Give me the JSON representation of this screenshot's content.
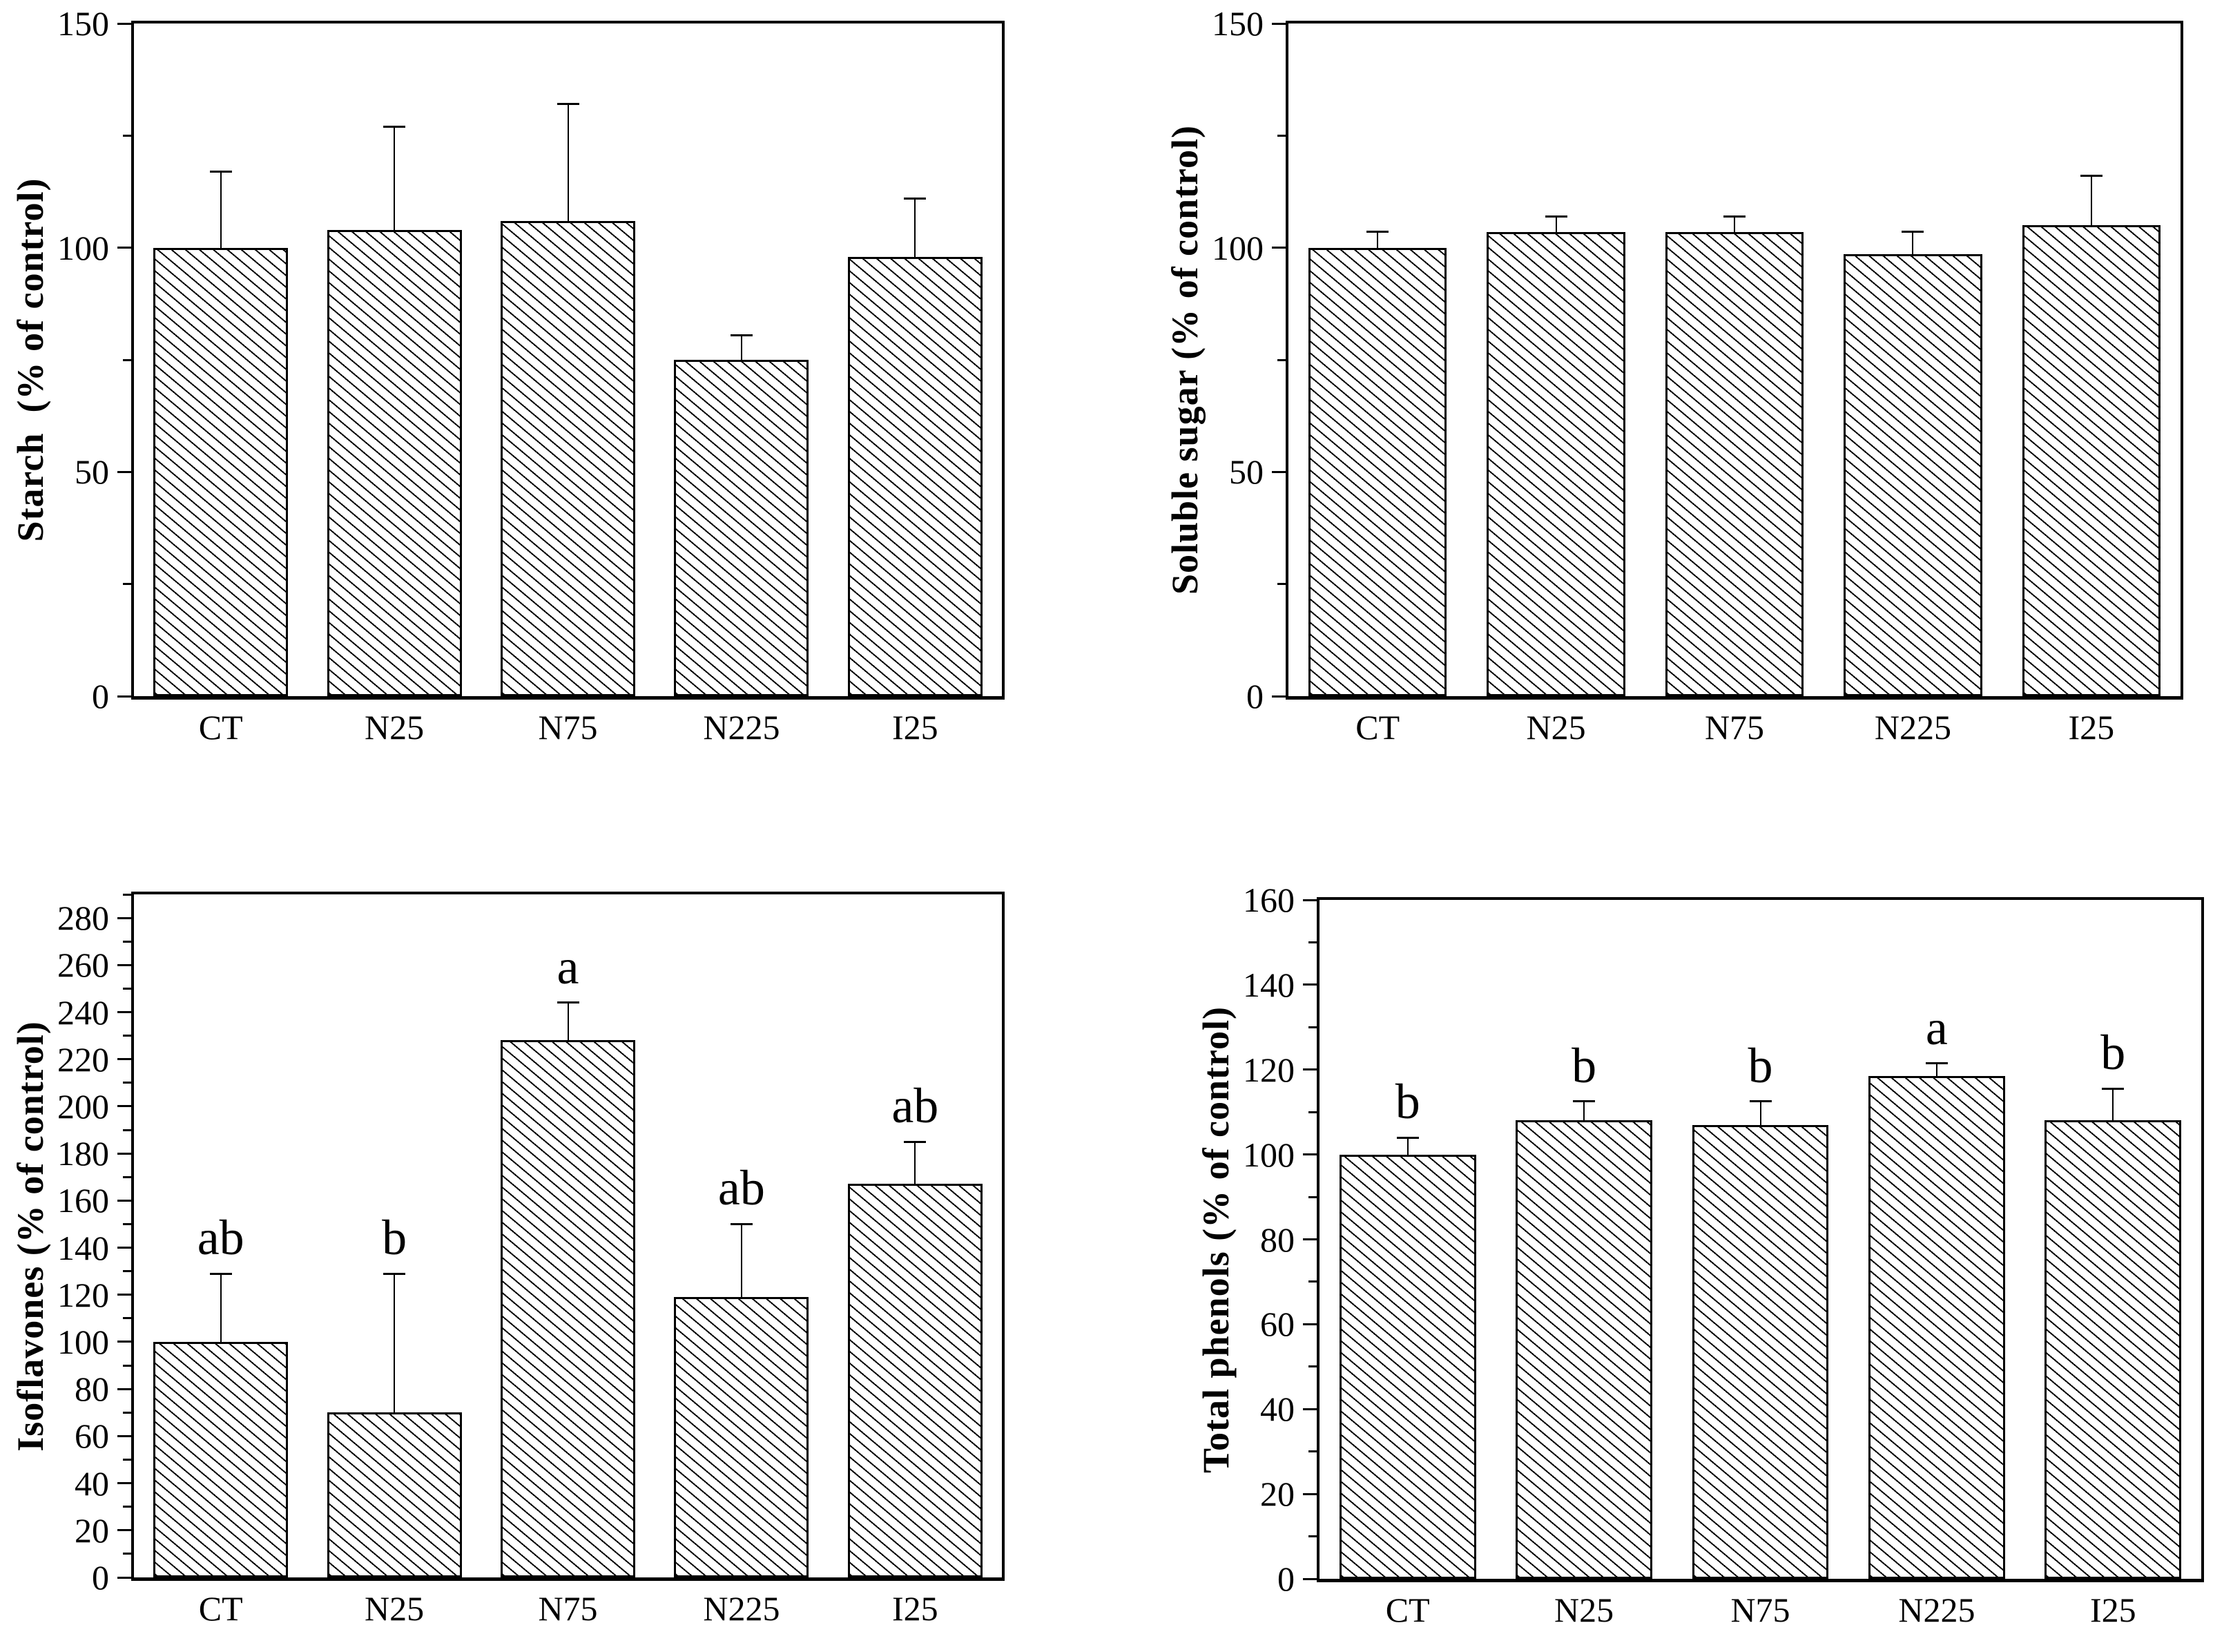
{
  "figure": {
    "description": "Four-panel bar chart figure, hatched bars with +SD error bars, % of control",
    "background_color": "#ffffff",
    "foreground_color": "#000000"
  },
  "chart_data": [
    {
      "type": "bar",
      "id": "starch",
      "ylabel": "Starch  (% of control)",
      "categories": [
        "CT",
        "N25",
        "N75",
        "N225",
        "I25"
      ],
      "values": [
        100,
        104,
        106,
        75,
        98
      ],
      "errors_plus": [
        17,
        23,
        26,
        5.5,
        13
      ],
      "letters": null,
      "ylim": [
        0,
        150
      ],
      "yticks": [
        0,
        50,
        100,
        150
      ],
      "minor_step": 25,
      "legend": "none",
      "grid": "off",
      "bar_fill": "white with black diagonal hatch"
    },
    {
      "type": "bar",
      "id": "soluble-sugar",
      "ylabel": "Soluble sugar (% of control)",
      "categories": [
        "CT",
        "N25",
        "N75",
        "N225",
        "I25"
      ],
      "values": [
        100,
        103.5,
        103.5,
        98.5,
        105
      ],
      "errors_plus": [
        3.5,
        3.5,
        3.5,
        5,
        11
      ],
      "letters": null,
      "ylim": [
        0,
        150
      ],
      "yticks": [
        0,
        50,
        100,
        150
      ],
      "minor_step": 25,
      "legend": "none",
      "grid": "off",
      "bar_fill": "white with black diagonal hatch"
    },
    {
      "type": "bar",
      "id": "isoflavones",
      "ylabel": "Isoflavones (% of control)",
      "categories": [
        "CT",
        "N25",
        "N75",
        "N225",
        "I25"
      ],
      "values": [
        100,
        70,
        228,
        119,
        167
      ],
      "errors_plus": [
        29,
        59,
        16,
        31,
        18
      ],
      "letters": [
        "ab",
        "b",
        "a",
        "ab",
        "ab"
      ],
      "ylim": [
        0,
        290
      ],
      "yticks": [
        0,
        20,
        40,
        60,
        80,
        100,
        120,
        140,
        160,
        180,
        200,
        220,
        240,
        260,
        280
      ],
      "minor_step": 10,
      "legend": "none",
      "grid": "off",
      "bar_fill": "white with black diagonal hatch"
    },
    {
      "type": "bar",
      "id": "total-phenols",
      "ylabel": "Total phenols (% of control)",
      "categories": [
        "CT",
        "N25",
        "N75",
        "N225",
        "I25"
      ],
      "values": [
        100,
        108,
        107,
        118.5,
        108
      ],
      "errors_plus": [
        4,
        4.5,
        5.5,
        3,
        7.5
      ],
      "letters": [
        "b",
        "b",
        "b",
        "a",
        "b"
      ],
      "ylim": [
        0,
        160
      ],
      "yticks": [
        0,
        20,
        40,
        60,
        80,
        100,
        120,
        140,
        160
      ],
      "minor_step": 10,
      "legend": "none",
      "grid": "off",
      "bar_fill": "white with black diagonal hatch"
    }
  ]
}
